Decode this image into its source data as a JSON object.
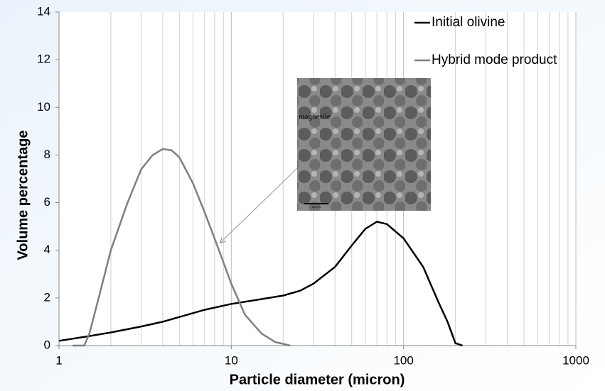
{
  "chart_data": {
    "type": "line",
    "xlabel": "Particle diameter (micron)",
    "ylabel": "Volume percentage",
    "xscale": "log",
    "xlim": [
      1,
      1000
    ],
    "xticks": [
      1,
      10,
      100,
      1000
    ],
    "xminorticks": [
      2,
      3,
      4,
      5,
      6,
      7,
      8,
      9,
      20,
      30,
      40,
      50,
      60,
      70,
      80,
      90,
      200,
      300,
      400,
      500,
      600,
      700,
      800,
      900
    ],
    "ylim": [
      0,
      14
    ],
    "yticks": [
      0,
      2,
      4,
      6,
      8,
      10,
      12,
      14
    ],
    "grid": "x",
    "legend": "top-right",
    "series": [
      {
        "name": "Initial olivine",
        "color": "#000000",
        "x": [
          1,
          1.5,
          2,
          3,
          4,
          5,
          7,
          10,
          15,
          20,
          25,
          30,
          40,
          50,
          60,
          70,
          80,
          100,
          130,
          160,
          180,
          200,
          220
        ],
        "values": [
          0.2,
          0.4,
          0.55,
          0.8,
          1.0,
          1.2,
          1.5,
          1.75,
          1.95,
          2.1,
          2.3,
          2.6,
          3.3,
          4.2,
          4.9,
          5.2,
          5.1,
          4.5,
          3.3,
          1.8,
          1.0,
          0.1,
          0
        ]
      },
      {
        "name": "Hybrid mode product",
        "color": "#7f7f7f",
        "x": [
          1.2,
          1.4,
          1.5,
          1.7,
          2,
          2.5,
          3,
          3.5,
          4,
          4.5,
          5,
          6,
          7,
          8,
          9,
          10,
          12,
          15,
          18,
          22
        ],
        "values": [
          0,
          0,
          0.5,
          2,
          4,
          6,
          7.4,
          8,
          8.25,
          8.2,
          7.9,
          6.8,
          5.6,
          4.5,
          3.5,
          2.6,
          1.3,
          0.5,
          0.15,
          0
        ]
      }
    ],
    "inset_labels": [
      "magnesile",
      "100 nm"
    ]
  }
}
